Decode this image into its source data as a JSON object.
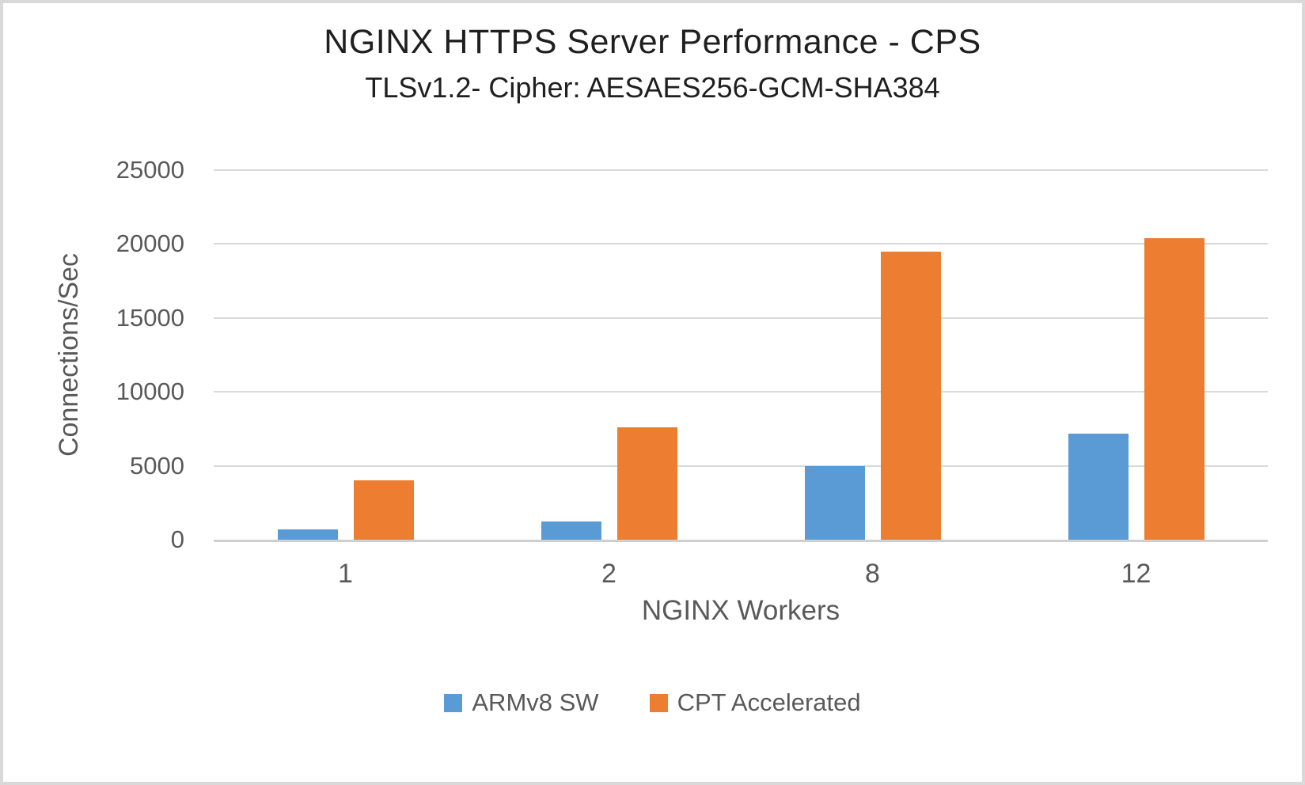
{
  "chart": {
    "title": "NGINX HTTPS Server Performance - CPS",
    "subtitle": "TLSv1.2- Cipher: AESAES256-GCM-SHA384",
    "xlabel": "NGINX Workers",
    "ylabel": "Connections/Sec"
  },
  "chart_data": {
    "type": "bar",
    "title": "NGINX HTTPS Server Performance - CPS",
    "subtitle": "TLSv1.2- Cipher: AESAES256-GCM-SHA384",
    "categories": [
      "1",
      "2",
      "8",
      "12"
    ],
    "series": [
      {
        "name": "ARMv8 SW",
        "color": "#5B9BD5",
        "values": [
          700,
          1250,
          5000,
          7200
        ]
      },
      {
        "name": "CPT Accelerated",
        "color": "#ED7D31",
        "values": [
          4000,
          7600,
          19500,
          20400
        ]
      }
    ],
    "xlabel": "NGINX Workers",
    "ylabel": "Connections/Sec",
    "ylim": [
      0,
      25000
    ],
    "y_ticks": [
      0,
      5000,
      10000,
      15000,
      20000,
      25000
    ],
    "grid": true,
    "legend_position": "bottom",
    "gridline_color": "#d9d9d9",
    "axis_text_color": "#595959"
  }
}
